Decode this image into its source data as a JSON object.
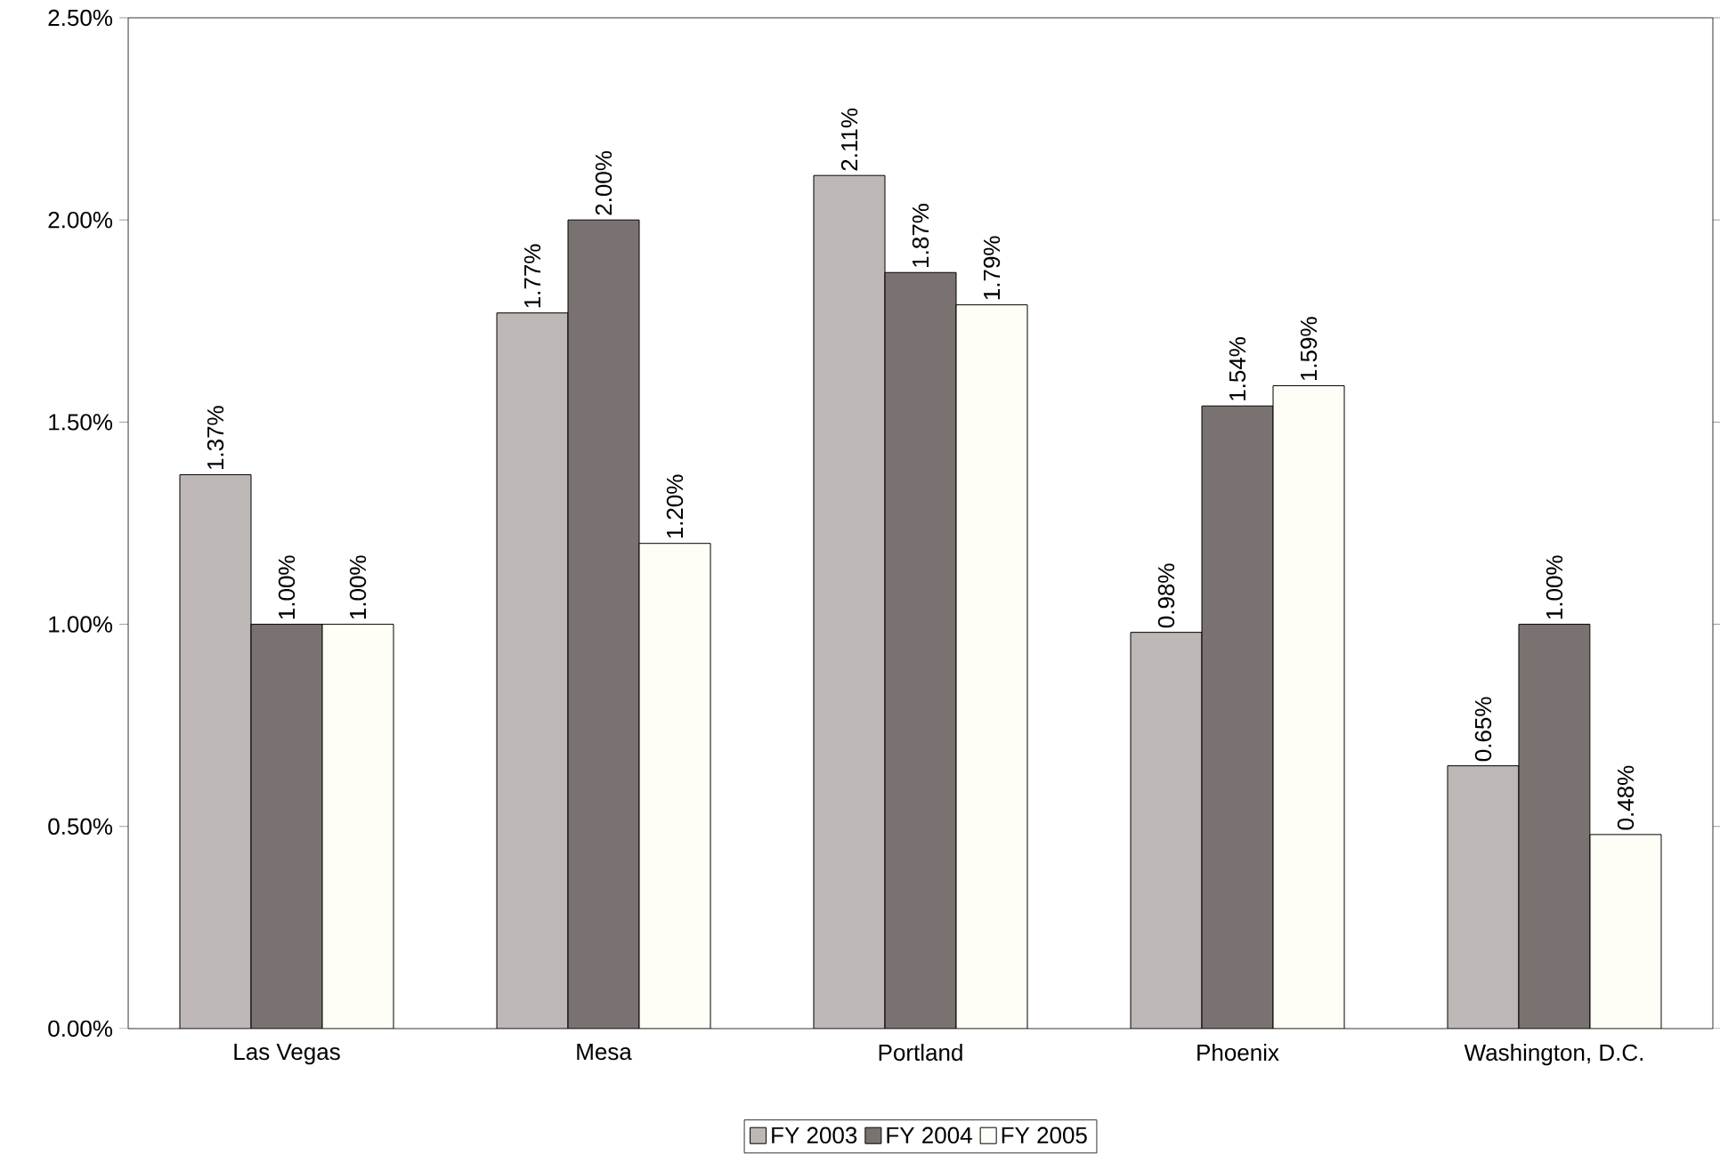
{
  "chart_data": {
    "type": "bar",
    "categories": [
      "Las Vegas",
      "Mesa",
      "Portland",
      "Phoenix",
      "Washington, D.C."
    ],
    "series": [
      {
        "name": "FY 2003",
        "color": "#bdb8b6",
        "values": [
          1.37,
          1.77,
          2.11,
          0.98,
          0.65
        ],
        "value_labels": [
          "1.37%",
          "1.77%",
          "2.11%",
          "0.98%",
          "0.65%"
        ]
      },
      {
        "name": "FY 2004",
        "color": "#7a7270",
        "values": [
          1.0,
          2.0,
          1.87,
          1.54,
          1.0
        ],
        "value_labels": [
          "1.00%",
          "2.00%",
          "1.87%",
          "1.54%",
          "1.00%"
        ]
      },
      {
        "name": "FY 2005",
        "color": "#fffef6",
        "values": [
          1.0,
          1.2,
          1.79,
          1.59,
          0.48
        ],
        "value_labels": [
          "1.00%",
          "1.20%",
          "1.79%",
          "1.59%",
          "0.48%"
        ]
      }
    ],
    "ylim": [
      0,
      2.5
    ],
    "yticks": [
      {
        "value": 0,
        "label": "0.00%"
      },
      {
        "value": 0.5,
        "label": "0.50%"
      },
      {
        "value": 1.0,
        "label": "1.00%"
      },
      {
        "value": 1.5,
        "label": "1.50%"
      },
      {
        "value": 2.0,
        "label": "2.00%"
      },
      {
        "value": 2.5,
        "label": "2.50%"
      }
    ],
    "grid": false,
    "legend": "bottom"
  }
}
